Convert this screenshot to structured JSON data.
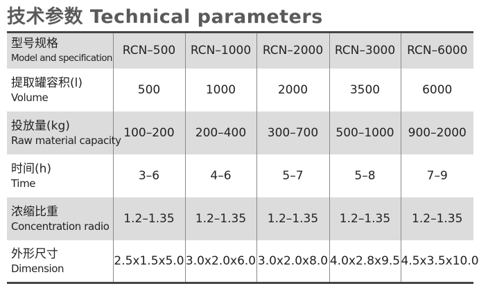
{
  "header": {
    "title": "技术参数 Technical parameters"
  },
  "table": {
    "header": {
      "label_cn": "型号规格",
      "label_en": "Model and specification",
      "models": [
        "RCN–500",
        "RCN–1000",
        "RCN–2000",
        "RCN–3000",
        "RCN–6000"
      ]
    },
    "rows": [
      {
        "label_cn": "提取罐容积(l)",
        "label_en": "Volume",
        "values": [
          "500",
          "1000",
          "2000",
          "3500",
          "6000"
        ]
      },
      {
        "label_cn": "投放量(kg)",
        "label_en": "Raw material capacity",
        "values": [
          "100–200",
          "200–400",
          "300–700",
          "500–1000",
          "900–2000"
        ]
      },
      {
        "label_cn": "时间(h)",
        "label_en": "Time",
        "values": [
          "3–6",
          "4–6",
          "5–7",
          "5–8",
          "7–9"
        ]
      },
      {
        "label_cn": "浓缩比重",
        "label_en": "Concentration radio",
        "values": [
          "1.2–1.35",
          "1.2–1.35",
          "1.2–1.35",
          "1.2–1.35",
          "1.2–1.35"
        ]
      },
      {
        "label_cn": "外形尺寸",
        "label_en": "Dimension",
        "values": [
          "2.5x1.5x5.0",
          "3.0x2.0x6.0",
          "3.0x2.0x8.0",
          "4.0x2.8x9.5",
          "4.5x3.5x10.0"
        ]
      }
    ]
  }
}
